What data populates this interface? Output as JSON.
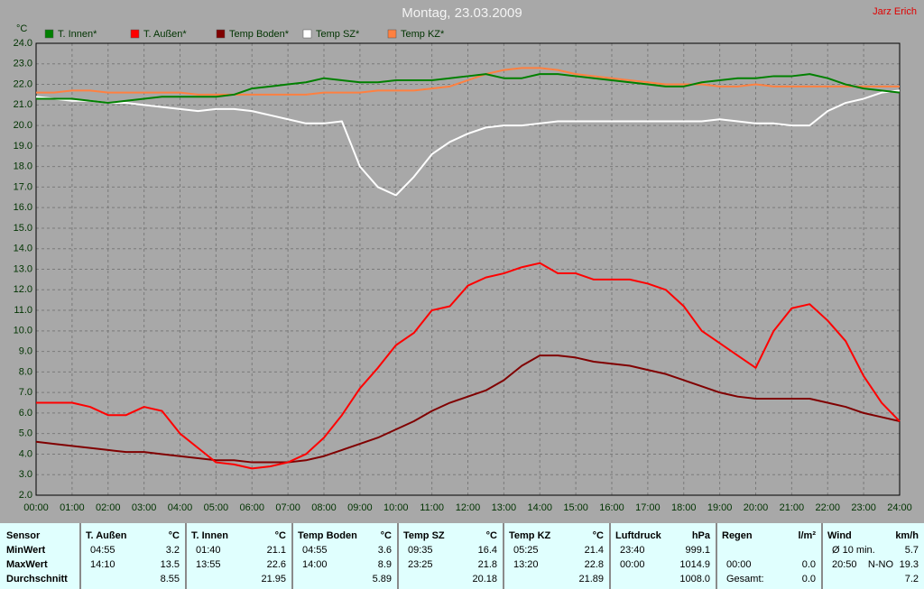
{
  "chart_data": {
    "type": "line",
    "title": "Montag, 23.03.2009",
    "author": "Jarz Erich",
    "y_label": "°C",
    "x": [
      0,
      0.5,
      1,
      1.5,
      2,
      2.5,
      3,
      3.5,
      4,
      4.5,
      5,
      5.5,
      6,
      6.5,
      7,
      7.5,
      8,
      8.5,
      9,
      9.5,
      10,
      10.5,
      11,
      11.5,
      12,
      12.5,
      13,
      13.5,
      14,
      14.5,
      15,
      15.5,
      16,
      16.5,
      17,
      17.5,
      18,
      18.5,
      19,
      19.5,
      20,
      20.5,
      21,
      21.5,
      22,
      22.5,
      23,
      23.5,
      24
    ],
    "series": [
      {
        "name": "T. Innen*",
        "color": "#008000",
        "values": [
          21.3,
          21.3,
          21.3,
          21.2,
          21.1,
          21.2,
          21.3,
          21.4,
          21.4,
          21.4,
          21.4,
          21.5,
          21.8,
          21.9,
          22.0,
          22.1,
          22.3,
          22.2,
          22.1,
          22.1,
          22.2,
          22.2,
          22.2,
          22.3,
          22.4,
          22.5,
          22.3,
          22.3,
          22.5,
          22.5,
          22.4,
          22.3,
          22.2,
          22.1,
          22.0,
          21.9,
          21.9,
          22.1,
          22.2,
          22.3,
          22.3,
          22.4,
          22.4,
          22.5,
          22.3,
          22.0,
          21.8,
          21.7,
          21.6
        ]
      },
      {
        "name": "T. Außen*",
        "color": "#ff0000",
        "values": [
          6.5,
          6.5,
          6.5,
          6.3,
          5.9,
          5.9,
          6.3,
          6.1,
          5.0,
          4.3,
          3.6,
          3.5,
          3.3,
          3.4,
          3.6,
          4.0,
          4.8,
          5.9,
          7.2,
          8.2,
          9.3,
          9.9,
          11.0,
          11.2,
          12.2,
          12.6,
          12.8,
          13.1,
          13.3,
          12.8,
          12.8,
          12.5,
          12.5,
          12.5,
          12.3,
          12.0,
          11.2,
          10.0,
          9.4,
          8.8,
          8.2,
          10.0,
          11.1,
          11.3,
          10.5,
          9.5,
          7.8,
          6.5,
          5.6
        ]
      },
      {
        "name": "Temp Boden*",
        "color": "#800000",
        "values": [
          4.6,
          4.5,
          4.4,
          4.3,
          4.2,
          4.1,
          4.1,
          4.0,
          3.9,
          3.8,
          3.7,
          3.7,
          3.6,
          3.6,
          3.6,
          3.7,
          3.9,
          4.2,
          4.5,
          4.8,
          5.2,
          5.6,
          6.1,
          6.5,
          6.8,
          7.1,
          7.6,
          8.3,
          8.8,
          8.8,
          8.7,
          8.5,
          8.4,
          8.3,
          8.1,
          7.9,
          7.6,
          7.3,
          7.0,
          6.8,
          6.7,
          6.7,
          6.7,
          6.7,
          6.5,
          6.3,
          6.0,
          5.8,
          5.6
        ]
      },
      {
        "name": "Temp SZ*",
        "color": "#ffffff",
        "values": [
          21.4,
          21.3,
          21.2,
          21.2,
          21.1,
          21.1,
          21.0,
          20.9,
          20.8,
          20.7,
          20.8,
          20.8,
          20.7,
          20.5,
          20.3,
          20.1,
          20.1,
          20.2,
          18.0,
          17.0,
          16.6,
          17.5,
          18.6,
          19.2,
          19.6,
          19.9,
          20.0,
          20.0,
          20.1,
          20.2,
          20.2,
          20.2,
          20.2,
          20.2,
          20.2,
          20.2,
          20.2,
          20.2,
          20.3,
          20.2,
          20.1,
          20.1,
          20.0,
          20.0,
          20.7,
          21.1,
          21.3,
          21.6,
          21.7
        ]
      },
      {
        "name": "Temp KZ*",
        "color": "#ff8040",
        "values": [
          21.6,
          21.6,
          21.7,
          21.7,
          21.6,
          21.6,
          21.6,
          21.6,
          21.6,
          21.5,
          21.5,
          21.5,
          21.5,
          21.5,
          21.5,
          21.5,
          21.6,
          21.6,
          21.6,
          21.7,
          21.7,
          21.7,
          21.8,
          21.9,
          22.2,
          22.5,
          22.7,
          22.8,
          22.8,
          22.7,
          22.5,
          22.4,
          22.3,
          22.2,
          22.1,
          22.0,
          22.0,
          22.0,
          21.9,
          21.9,
          22.0,
          21.9,
          21.9,
          21.9,
          21.9,
          21.9,
          21.9,
          21.9,
          21.9
        ]
      }
    ],
    "xlim": [
      0,
      24
    ],
    "ylim": [
      2,
      24
    ],
    "xticks": [
      {
        "value": 0,
        "label": "00:00"
      },
      {
        "value": 1,
        "label": "01:00"
      },
      {
        "value": 2,
        "label": "02:00"
      },
      {
        "value": 3,
        "label": "03:00"
      },
      {
        "value": 4,
        "label": "04:00"
      },
      {
        "value": 5,
        "label": "05:00"
      },
      {
        "value": 6,
        "label": "06:00"
      },
      {
        "value": 7,
        "label": "07:00"
      },
      {
        "value": 8,
        "label": "08:00"
      },
      {
        "value": 9,
        "label": "09:00"
      },
      {
        "value": 10,
        "label": "10:00"
      },
      {
        "value": 11,
        "label": "11:00"
      },
      {
        "value": 12,
        "label": "12:00"
      },
      {
        "value": 13,
        "label": "13:00"
      },
      {
        "value": 14,
        "label": "14:00"
      },
      {
        "value": 15,
        "label": "15:00"
      },
      {
        "value": 16,
        "label": "16:00"
      },
      {
        "value": 17,
        "label": "17:00"
      },
      {
        "value": 18,
        "label": "18:00"
      },
      {
        "value": 19,
        "label": "19:00"
      },
      {
        "value": 20,
        "label": "20:00"
      },
      {
        "value": 21,
        "label": "21:00"
      },
      {
        "value": 22,
        "label": "22:00"
      },
      {
        "value": 23,
        "label": "23:00"
      },
      {
        "value": 24,
        "label": "24:00"
      }
    ],
    "yticks": [
      {
        "value": 2,
        "label": "2.0"
      },
      {
        "value": 3,
        "label": "3.0"
      },
      {
        "value": 4,
        "label": "4.0"
      },
      {
        "value": 5,
        "label": "5.0"
      },
      {
        "value": 6,
        "label": "6.0"
      },
      {
        "value": 7,
        "label": "7.0"
      },
      {
        "value": 8,
        "label": "8.0"
      },
      {
        "value": 9,
        "label": "9.0"
      },
      {
        "value": 10,
        "label": "10.0"
      },
      {
        "value": 11,
        "label": "11.0"
      },
      {
        "value": 12,
        "label": "12.0"
      },
      {
        "value": 13,
        "label": "13.0"
      },
      {
        "value": 14,
        "label": "14.0"
      },
      {
        "value": 15,
        "label": "15.0"
      },
      {
        "value": 16,
        "label": "16.0"
      },
      {
        "value": 17,
        "label": "17.0"
      },
      {
        "value": 18,
        "label": "18.0"
      },
      {
        "value": 19,
        "label": "19.0"
      },
      {
        "value": 20,
        "label": "20.0"
      },
      {
        "value": 21,
        "label": "21.0"
      },
      {
        "value": 22,
        "label": "22.0"
      },
      {
        "value": 23,
        "label": "23.0"
      },
      {
        "value": 24,
        "label": "24.0"
      }
    ],
    "grid": true
  },
  "table": {
    "row_labels": [
      "Sensor",
      "MinWert",
      "MaxWert",
      "Durchschnitt"
    ],
    "columns": [
      {
        "name": "T. Außen",
        "unit": "°C",
        "rows": [
          [
            "04:55",
            "3.2"
          ],
          [
            "14:10",
            "13.5"
          ],
          [
            null,
            "8.55"
          ]
        ]
      },
      {
        "name": "T. Innen",
        "unit": "°C",
        "rows": [
          [
            "01:40",
            "21.1"
          ],
          [
            "13:55",
            "22.6"
          ],
          [
            null,
            "21.95"
          ]
        ]
      },
      {
        "name": "Temp Boden",
        "unit": "°C",
        "rows": [
          [
            "04:55",
            "3.6"
          ],
          [
            "14:00",
            "8.9"
          ],
          [
            null,
            "5.89"
          ]
        ]
      },
      {
        "name": "Temp SZ",
        "unit": "°C",
        "rows": [
          [
            "09:35",
            "16.4"
          ],
          [
            "23:25",
            "21.8"
          ],
          [
            null,
            "20.18"
          ]
        ]
      },
      {
        "name": "Temp KZ",
        "unit": "°C",
        "rows": [
          [
            "05:25",
            "21.4"
          ],
          [
            "13:20",
            "22.8"
          ],
          [
            null,
            "21.89"
          ]
        ]
      },
      {
        "name": "Luftdruck",
        "unit": "hPa",
        "rows": [
          [
            "23:40",
            "999.1"
          ],
          [
            "00:00",
            "1014.9"
          ],
          [
            null,
            "1008.0"
          ]
        ]
      },
      {
        "name": "Regen",
        "unit": "l/m²",
        "rows": [
          [
            null,
            null
          ],
          [
            "00:00",
            "0.0"
          ],
          [
            "Gesamt:",
            "0.0"
          ]
        ]
      },
      {
        "name": "Wind",
        "unit": "km/h",
        "rows": [
          [
            "Ø 10 min.",
            "5.7"
          ],
          [
            "20:50",
            "N-NO",
            "19.3"
          ],
          [
            null,
            "7.2"
          ]
        ]
      }
    ]
  }
}
